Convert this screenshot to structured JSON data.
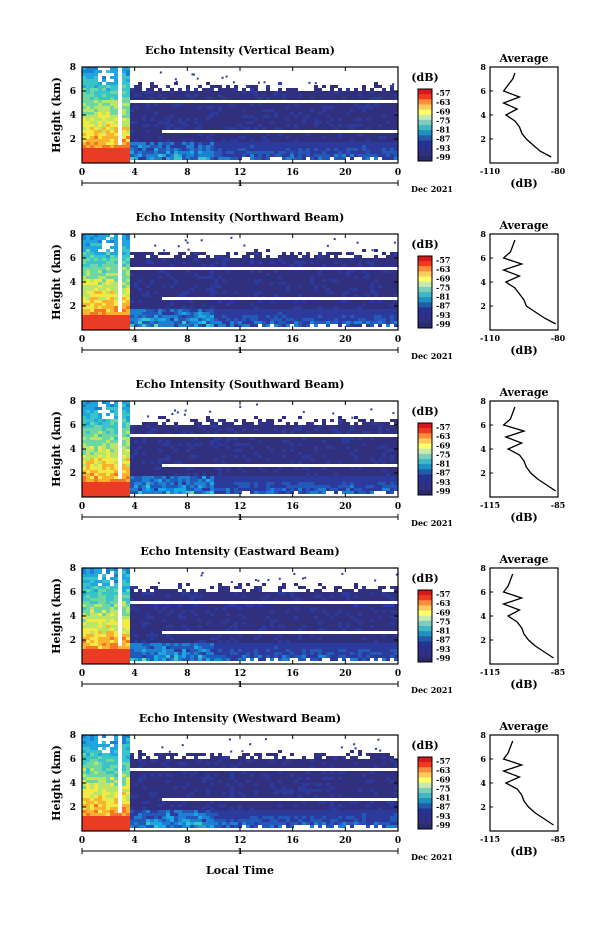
{
  "figure": {
    "x_label": "Local Time",
    "date_label": "Dec 2021",
    "day_label": "1",
    "colorbar_unit": "(dB)",
    "colorbar_ticks": [
      "-57",
      "-63",
      "-69",
      "-75",
      "-81",
      "-87",
      "-93",
      "-99"
    ],
    "colorbar_colors": [
      "#d7191c",
      "#f03b20",
      "#fd8d3c",
      "#fecc5c",
      "#ffff66",
      "#c7e9b4",
      "#7fcdbb",
      "#41b6c4",
      "#1d91c0",
      "#225ea8",
      "#253494",
      "#2c2f8c",
      "#31307e",
      "#2a2a6e"
    ],
    "average_title": "Average",
    "average_xlabel": "(dB)",
    "height_label": "Height (km)"
  },
  "chart_data": [
    {
      "type": "heatmap",
      "title": "Echo Intensity (Vertical Beam)",
      "ylabel": "Height (km)",
      "xlabel": "",
      "x_ticks": [
        "0",
        "4",
        "8",
        "12",
        "16",
        "20",
        "0"
      ],
      "y_ticks": [
        "2",
        "4",
        "6",
        "8"
      ],
      "xlim": [
        0,
        24
      ],
      "ylim": [
        0,
        8
      ],
      "colorbar": {
        "unit": "(dB)",
        "ticks": [
          -57,
          -63,
          -69,
          -75,
          -81,
          -87,
          -93,
          -99
        ]
      },
      "profile": {
        "title": "Average",
        "xlabel": "(dB)",
        "x_ticks": [
          "-110",
          "-80"
        ],
        "xlim": [
          -110,
          -80
        ],
        "y_ticks": [
          "2",
          "4",
          "6",
          "8"
        ],
        "height": [
          0.5,
          1.0,
          1.5,
          2.0,
          2.5,
          3.0,
          3.5,
          4.0,
          4.5,
          5.0,
          5.5,
          6.0,
          6.5,
          7.0,
          7.5
        ],
        "values": [
          -83,
          -88,
          -91,
          -94,
          -96,
          -97,
          -99,
          -103,
          -98,
          -104,
          -97,
          -104,
          -102,
          -100,
          -99
        ]
      }
    },
    {
      "type": "heatmap",
      "title": "Echo Intensity (Northward Beam)",
      "ylabel": "Height (km)",
      "xlabel": "",
      "x_ticks": [
        "0",
        "4",
        "8",
        "12",
        "16",
        "20",
        "0"
      ],
      "y_ticks": [
        "2",
        "4",
        "6",
        "8"
      ],
      "xlim": [
        0,
        24
      ],
      "ylim": [
        0,
        8
      ],
      "colorbar": {
        "unit": "(dB)",
        "ticks": [
          -57,
          -63,
          -69,
          -75,
          -81,
          -87,
          -93,
          -99
        ]
      },
      "profile": {
        "title": "Average",
        "xlabel": "(dB)",
        "x_ticks": [
          "-110",
          "-80"
        ],
        "xlim": [
          -110,
          -80
        ],
        "y_ticks": [
          "2",
          "4",
          "6",
          "8"
        ],
        "height": [
          0.5,
          1.0,
          1.5,
          2.0,
          2.5,
          3.0,
          3.5,
          4.0,
          4.5,
          5.0,
          5.5,
          6.0,
          6.5,
          7.0,
          7.5
        ],
        "values": [
          -81,
          -86,
          -90,
          -94,
          -95,
          -97,
          -99,
          -103,
          -97,
          -104,
          -96,
          -104,
          -101,
          -100,
          -99
        ]
      }
    },
    {
      "type": "heatmap",
      "title": "Echo Intensity (Southward Beam)",
      "ylabel": "Height (km)",
      "xlabel": "",
      "x_ticks": [
        "0",
        "4",
        "8",
        "12",
        "16",
        "20",
        "0"
      ],
      "y_ticks": [
        "2",
        "4",
        "6",
        "8"
      ],
      "xlim": [
        0,
        24
      ],
      "ylim": [
        0,
        8
      ],
      "colorbar": {
        "unit": "(dB)",
        "ticks": [
          -57,
          -63,
          -69,
          -75,
          -81,
          -87,
          -93,
          -99
        ]
      },
      "profile": {
        "title": "Average",
        "xlabel": "(dB)",
        "x_ticks": [
          "-115",
          "-85"
        ],
        "xlim": [
          -115,
          -85
        ],
        "y_ticks": [
          "2",
          "4",
          "6",
          "8"
        ],
        "height": [
          0.5,
          1.0,
          1.5,
          2.0,
          2.5,
          3.0,
          3.5,
          4.0,
          4.5,
          5.0,
          5.5,
          6.0,
          6.5,
          7.0,
          7.5
        ],
        "values": [
          -86,
          -90,
          -94,
          -97,
          -99,
          -100,
          -102,
          -107,
          -101,
          -108,
          -100,
          -109,
          -106,
          -105,
          -104
        ]
      }
    },
    {
      "type": "heatmap",
      "title": "Echo Intensity (Eastward Beam)",
      "ylabel": "Height (km)",
      "xlabel": "",
      "x_ticks": [
        "0",
        "4",
        "8",
        "12",
        "16",
        "20",
        "0"
      ],
      "y_ticks": [
        "2",
        "4",
        "6",
        "8"
      ],
      "xlim": [
        0,
        24
      ],
      "ylim": [
        0,
        8
      ],
      "colorbar": {
        "unit": "(dB)",
        "ticks": [
          -57,
          -63,
          -69,
          -75,
          -81,
          -87,
          -93,
          -99
        ]
      },
      "profile": {
        "title": "Average",
        "xlabel": "(dB)",
        "x_ticks": [
          "-115",
          "-85"
        ],
        "xlim": [
          -115,
          -85
        ],
        "y_ticks": [
          "2",
          "4",
          "6",
          "8"
        ],
        "height": [
          0.5,
          1.0,
          1.5,
          2.0,
          2.5,
          3.0,
          3.5,
          4.0,
          4.5,
          5.0,
          5.5,
          6.0,
          6.5,
          7.0,
          7.5
        ],
        "values": [
          -87,
          -91,
          -95,
          -98,
          -100,
          -101,
          -103,
          -107,
          -102,
          -109,
          -101,
          -109,
          -107,
          -106,
          -105
        ]
      }
    },
    {
      "type": "heatmap",
      "title": "Echo Intensity (Westward Beam)",
      "ylabel": "Height (km)",
      "xlabel": "Local Time",
      "x_ticks": [
        "0",
        "4",
        "8",
        "12",
        "16",
        "20",
        "0"
      ],
      "y_ticks": [
        "2",
        "4",
        "6",
        "8"
      ],
      "xlim": [
        0,
        24
      ],
      "ylim": [
        0,
        8
      ],
      "colorbar": {
        "unit": "(dB)",
        "ticks": [
          -57,
          -63,
          -69,
          -75,
          -81,
          -87,
          -93,
          -99
        ]
      },
      "profile": {
        "title": "Average",
        "xlabel": "(dB)",
        "x_ticks": [
          "-115",
          "-85"
        ],
        "xlim": [
          -115,
          -85
        ],
        "y_ticks": [
          "2",
          "4",
          "6",
          "8"
        ],
        "height": [
          0.5,
          1.0,
          1.5,
          2.0,
          2.5,
          3.0,
          3.5,
          4.0,
          4.5,
          5.0,
          5.5,
          6.0,
          6.5,
          7.0,
          7.5
        ],
        "values": [
          -87,
          -91,
          -95,
          -98,
          -100,
          -101,
          -103,
          -108,
          -102,
          -109,
          -101,
          -109,
          -107,
          -106,
          -105
        ]
      }
    }
  ]
}
